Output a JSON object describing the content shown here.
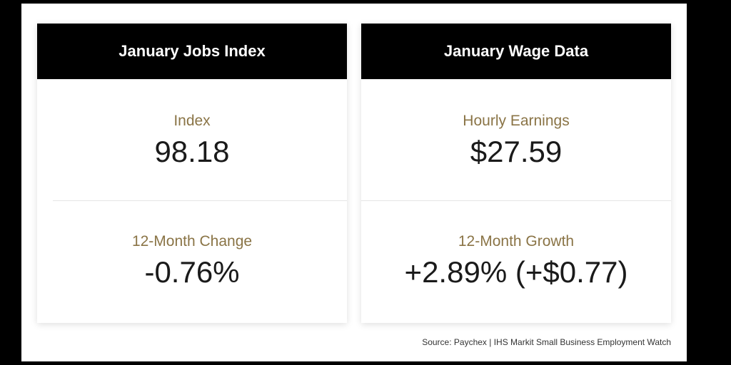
{
  "jobs_card": {
    "title": "January Jobs Index",
    "top_label": "Index",
    "top_value": "98.18",
    "bottom_label": "12-Month Change",
    "bottom_value": "-0.76%"
  },
  "wage_card": {
    "title": "January Wage Data",
    "top_label": "Hourly Earnings",
    "top_value": "$27.59",
    "bottom_label": "12-Month Growth",
    "bottom_value": "+2.89% (+$0.77)"
  },
  "source": "Source: Paychex | IHS Markit Small Business Employment Watch",
  "colors": {
    "header_bg": "#000000",
    "label": "#8a7446",
    "value": "#1a1a1a"
  }
}
